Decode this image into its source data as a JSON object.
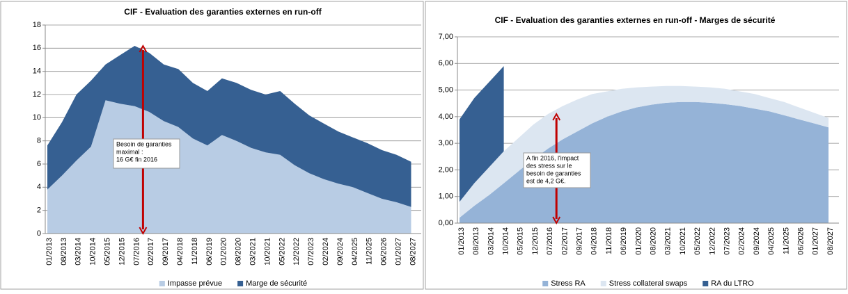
{
  "chart_data": [
    {
      "type": "area",
      "stacked": true,
      "title": "CIF - Evaluation des garanties externes en run-off",
      "categories": [
        "01/2013",
        "08/2013",
        "03/2014",
        "10/2014",
        "05/2015",
        "12/2015",
        "07/2016",
        "02/2017",
        "09/2017",
        "04/2018",
        "11/2018",
        "06/2019",
        "01/2020",
        "08/2020",
        "03/2021",
        "10/2021",
        "05/2022",
        "12/2022",
        "07/2023",
        "02/2024",
        "09/2024",
        "04/2025",
        "11/2025",
        "06/2026",
        "01/2027",
        "08/2027"
      ],
      "series": [
        {
          "name": "Impasse prévue",
          "color": "#b8cce4",
          "values": [
            3.8,
            5.0,
            6.3,
            7.5,
            11.5,
            11.2,
            11.0,
            10.5,
            9.7,
            9.2,
            8.2,
            7.6,
            8.5,
            8.0,
            7.4,
            7.0,
            6.8,
            5.9,
            5.2,
            4.7,
            4.3,
            4.0,
            3.5,
            3.0,
            2.7,
            2.3
          ]
        },
        {
          "name": "Marge de sécurité",
          "color": "#366092",
          "values": [
            3.8,
            4.6,
            5.7,
            5.7,
            3.1,
            4.2,
            5.2,
            5.1,
            4.9,
            5.0,
            4.8,
            4.7,
            4.9,
            5.0,
            5.0,
            5.0,
            5.5,
            5.3,
            5.0,
            4.8,
            4.5,
            4.3,
            4.3,
            4.2,
            4.1,
            3.9
          ]
        }
      ],
      "ylim": [
        0,
        18
      ],
      "yticks": [
        0,
        2,
        4,
        6,
        8,
        10,
        12,
        14,
        16,
        18
      ],
      "grid": true,
      "annotation": [
        "Besoin de garanties",
        "maximal :",
        "16 G€ fin 2016"
      ]
    },
    {
      "type": "area",
      "stacked": true,
      "title": "CIF - Evaluation des garanties externes en run-off - Marges de sécurité",
      "categories": [
        "01/2013",
        "08/2013",
        "03/2014",
        "10/2014",
        "05/2015",
        "12/2015",
        "07/2016",
        "02/2017",
        "09/2017",
        "04/2018",
        "11/2018",
        "06/2019",
        "01/2020",
        "08/2020",
        "03/2021",
        "10/2021",
        "05/2022",
        "12/2022",
        "07/2023",
        "02/2024",
        "09/2024",
        "04/2025",
        "11/2025",
        "06/2026",
        "01/2027",
        "08/2027"
      ],
      "series": [
        {
          "name": "Stress RA",
          "color": "#95b3d7",
          "values": [
            0.2,
            0.65,
            1.05,
            1.5,
            1.95,
            2.4,
            2.8,
            3.15,
            3.45,
            3.75,
            4.0,
            4.2,
            4.35,
            4.45,
            4.52,
            4.55,
            4.55,
            4.52,
            4.47,
            4.4,
            4.3,
            4.2,
            4.05,
            3.9,
            3.75,
            3.6
          ]
        },
        {
          "name": "Stress collateral swaps",
          "color": "#dce6f1",
          "values": [
            0.6,
            0.85,
            1.05,
            1.2,
            1.25,
            1.3,
            1.3,
            1.25,
            1.2,
            1.1,
            0.95,
            0.85,
            0.75,
            0.68,
            0.63,
            0.6,
            0.58,
            0.58,
            0.58,
            0.55,
            0.55,
            0.5,
            0.5,
            0.45,
            0.4,
            0.35
          ]
        },
        {
          "name": "RA du LTRO",
          "color": "#366092",
          "values": [
            3.1,
            3.2,
            3.2,
            3.2,
            null,
            null,
            null,
            null,
            null,
            null,
            null,
            null,
            null,
            null,
            null,
            null,
            null,
            null,
            null,
            null,
            null,
            null,
            null,
            null,
            null,
            null
          ]
        }
      ],
      "ylim": [
        0,
        7
      ],
      "yticks": [
        {
          "value": 0,
          "label": "0,00"
        },
        {
          "value": 1,
          "label": "1,00"
        },
        {
          "value": 2,
          "label": "2,00"
        },
        {
          "value": 3,
          "label": "3,00"
        },
        {
          "value": 4,
          "label": "4,00"
        },
        {
          "value": 5,
          "label": "5,00"
        },
        {
          "value": 6,
          "label": "6,00"
        },
        {
          "value": 7,
          "label": "7,00"
        }
      ],
      "grid": true,
      "annotation": [
        "A fin 2016, l'impact",
        "des stress sur le",
        "besoin de garanties",
        "est de 4,2 G€."
      ]
    }
  ]
}
